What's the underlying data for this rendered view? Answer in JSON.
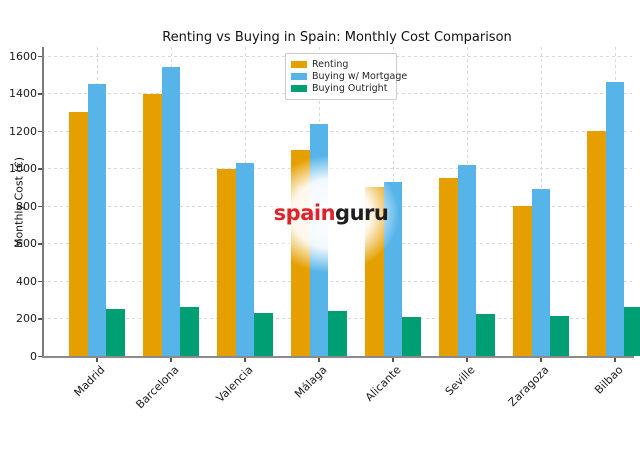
{
  "figure": {
    "title": "Renting vs Buying in Spain: Monthly Cost Comparison",
    "ylabel": "Monthly Cost (€)"
  },
  "watermark": {
    "part1": "spain",
    "part2": "guru",
    "part1_color": "#e0232b",
    "part2_color": "#1f1f1f"
  },
  "chart_data": {
    "type": "bar",
    "title": "Renting vs Buying in Spain: Monthly Cost Comparison",
    "xlabel": "",
    "ylabel": "Monthly Cost (€)",
    "categories": [
      "Madrid",
      "Barcelona",
      "Valencia",
      "Málaga",
      "Alicante",
      "Seville",
      "Zaragoza",
      "Bilbao"
    ],
    "series": [
      {
        "name": "Renting",
        "color": "#E69F00",
        "values": [
          1300,
          1400,
          1000,
          1100,
          900,
          950,
          800,
          1200
        ]
      },
      {
        "name": "Buying w/ Mortgage",
        "color": "#56B4E9",
        "values": [
          1450,
          1540,
          1030,
          1240,
          930,
          1020,
          890,
          1460
        ]
      },
      {
        "name": "Buying Outright",
        "color": "#009E73",
        "values": [
          250,
          260,
          230,
          240,
          210,
          225,
          215,
          260
        ]
      }
    ],
    "ylim": [
      0,
      1600
    ],
    "yticks": [
      0,
      200,
      400,
      600,
      800,
      1000,
      1200,
      1400,
      1600
    ],
    "grid": true,
    "grid_style": "dashed",
    "legend_position": "upper center",
    "x_tick_rotation": 45
  }
}
